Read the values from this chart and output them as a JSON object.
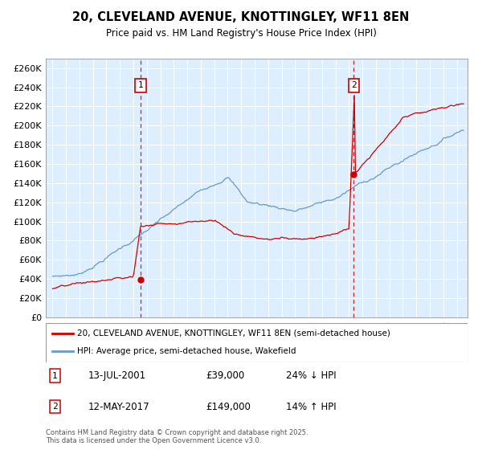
{
  "title": "20, CLEVELAND AVENUE, KNOTTINGLEY, WF11 8EN",
  "subtitle": "Price paid vs. HM Land Registry's House Price Index (HPI)",
  "ylabel_ticks": [
    "£0",
    "£20K",
    "£40K",
    "£60K",
    "£80K",
    "£100K",
    "£120K",
    "£140K",
    "£160K",
    "£180K",
    "£200K",
    "£220K",
    "£240K",
    "£260K"
  ],
  "ytick_vals": [
    0,
    20000,
    40000,
    60000,
    80000,
    100000,
    120000,
    140000,
    160000,
    180000,
    200000,
    220000,
    240000,
    260000
  ],
  "ylim": [
    0,
    270000
  ],
  "xlim_start": 1994.5,
  "xlim_end": 2025.8,
  "sale1_x": 2001.53,
  "sale1_y": 39000,
  "sale2_x": 2017.36,
  "sale2_y": 149000,
  "legend_line1": "20, CLEVELAND AVENUE, KNOTTINGLEY, WF11 8EN (semi-detached house)",
  "legend_line2": "HPI: Average price, semi-detached house, Wakefield",
  "note1_label": "1",
  "note1_date": "13-JUL-2001",
  "note1_price": "£39,000",
  "note1_hpi": "24% ↓ HPI",
  "note2_label": "2",
  "note2_date": "12-MAY-2017",
  "note2_price": "£149,000",
  "note2_hpi": "14% ↑ HPI",
  "copyright": "Contains HM Land Registry data © Crown copyright and database right 2025.\nThis data is licensed under the Open Government Licence v3.0.",
  "line_color_red": "#cc0000",
  "line_color_blue": "#6699cc",
  "bg_color": "#ddeeff",
  "grid_color": "#ffffff",
  "sale_marker_color": "#cc0000",
  "dashed_line_color": "#cc0000"
}
